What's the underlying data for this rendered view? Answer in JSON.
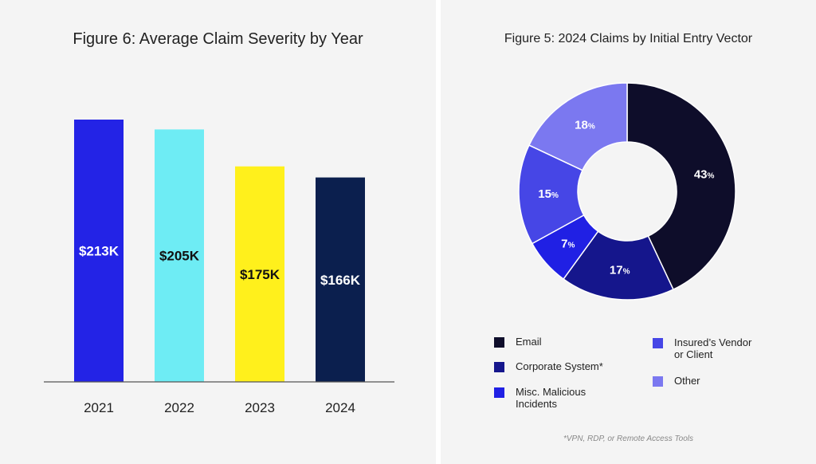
{
  "chart_data": [
    {
      "type": "bar",
      "title": "Figure 6: Average Claim Severity by Year",
      "categories": [
        "2021",
        "2022",
        "2023",
        "2024"
      ],
      "values": [
        213,
        205,
        175,
        166
      ],
      "value_labels": [
        "$213K",
        "$205K",
        "$175K",
        "$166K"
      ],
      "colors": [
        "#2323e6",
        "#6eecf4",
        "#fff01c",
        "#0b1f4e"
      ],
      "label_colors": [
        "#ffffff",
        "#111111",
        "#111111",
        "#ffffff"
      ],
      "xlabel": "",
      "ylabel": "",
      "ylim": [
        0,
        240
      ],
      "grid": false
    },
    {
      "type": "pie",
      "title": "Figure 5: 2024 Claims by Initial Entry Vector",
      "donut": true,
      "slices": [
        {
          "label": "Email",
          "value": 43,
          "display": "43",
          "color": "#0e0d2a"
        },
        {
          "label": "Corporate System*",
          "value": 17,
          "display": "17",
          "color": "#15168c"
        },
        {
          "label": "Misc. Malicious\nIncidents",
          "value": 7,
          "display": "7",
          "color": "#2020e4"
        },
        {
          "label": "Insured’s Vendor\nor Client",
          "value": 15,
          "display": "15",
          "color": "#4646e6"
        },
        {
          "label": "Other",
          "value": 18,
          "display": "18",
          "color": "#7b78f0"
        }
      ],
      "percent_sign": "%",
      "legend_position": "bottom"
    }
  ],
  "footnote": "*VPN, RDP, or Remote Access Tools"
}
